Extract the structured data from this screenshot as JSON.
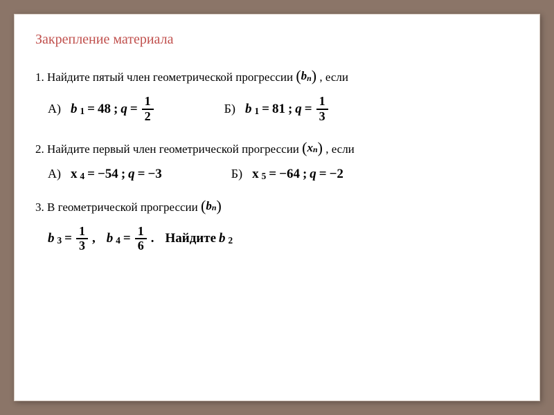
{
  "title": "Закрепление материала",
  "problem1": {
    "text_part1": "1. Найдите пятый член геометрической прогрессии ",
    "seq_var": "b",
    "seq_sub": "n",
    "text_part2": " , если",
    "a": {
      "label": "A)",
      "var": "b",
      "sub": "1",
      "val": "48",
      "q_var": "q",
      "q_num": "1",
      "q_den": "2"
    },
    "b": {
      "label": "Б)",
      "var": "b",
      "sub": "1",
      "val": "81",
      "q_var": "q",
      "q_num": "1",
      "q_den": "3"
    }
  },
  "problem2": {
    "text_part1": "2. Найдите первый член геометрической прогрессии ",
    "seq_var": "x",
    "seq_sub": "n",
    "text_part2": ", если",
    "a": {
      "label": "A)",
      "var": "x",
      "sub": "4",
      "val": "−54",
      "q_var": "q",
      "q_val": "−3"
    },
    "b": {
      "label": "Б)",
      "var": "x",
      "sub": "5",
      "val": "−64",
      "q_var": "q",
      "q_val": "−2"
    }
  },
  "problem3": {
    "text_part1": "3. В геометрической прогрессии ",
    "seq_var": "b",
    "seq_sub": "n",
    "b3": {
      "var": "b",
      "sub": "3",
      "num": "1",
      "den": "3"
    },
    "comma": ",",
    "b4": {
      "var": "b",
      "sub": "4",
      "num": "1",
      "den": "6"
    },
    "period": ".",
    "find_text": "Найдите",
    "find_var": "b",
    "find_sub": "2"
  },
  "colors": {
    "title": "#c0504d",
    "text": "#000000",
    "background": "#ffffff",
    "outer_bg": "#8b7568"
  }
}
